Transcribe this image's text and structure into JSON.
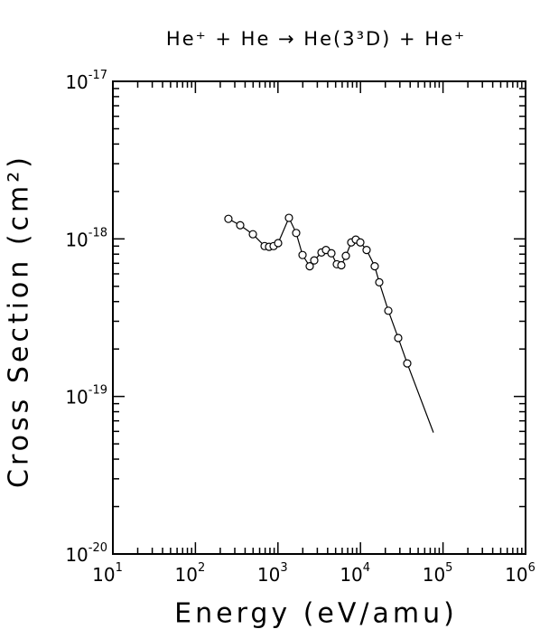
{
  "chart_data": {
    "type": "line",
    "title": "He⁺ + He → He(3³D) + He⁺",
    "xlabel": "Energy (eV/amu)",
    "ylabel": "Cross Section (cm²)",
    "xscale": "log",
    "yscale": "log",
    "xlim": [
      10,
      1000000
    ],
    "ylim": [
      1e-20,
      1e-17
    ],
    "xticks": [
      {
        "value": 10,
        "label": "10",
        "exponent": "1"
      },
      {
        "value": 100,
        "label": "10",
        "exponent": "2"
      },
      {
        "value": 1000,
        "label": "10",
        "exponent": "3"
      },
      {
        "value": 10000,
        "label": "10",
        "exponent": "4"
      },
      {
        "value": 100000,
        "label": "10",
        "exponent": "5"
      },
      {
        "value": 1000000,
        "label": "10",
        "exponent": "6"
      }
    ],
    "yticks": [
      {
        "value": 1e-20,
        "label": "10",
        "exponent": "-20"
      },
      {
        "value": 1e-19,
        "label": "10",
        "exponent": "-19"
      },
      {
        "value": 1e-18,
        "label": "10",
        "exponent": "-18"
      },
      {
        "value": 1e-17,
        "label": "10",
        "exponent": "-17"
      }
    ],
    "color": "#000000",
    "points": {
      "x": [
        251,
        349,
        497,
        689,
        781,
        886,
        1005,
        1359,
        1663,
        1985,
        2427,
        2753,
        3368,
        3818,
        4443,
        5168,
        5861,
        6650,
        7727,
        8770,
        9955,
        11860,
        14880,
        16890,
        21740,
        28660,
        36860
      ],
      "values": [
        1.34e-18,
        1.22e-18,
        1.07e-18,
        9e-19,
        8.9e-19,
        9e-19,
        9.4e-19,
        1.36e-18,
        1.09e-18,
        7.9e-19,
        6.7e-19,
        7.3e-19,
        8.2e-19,
        8.5e-19,
        8.1e-19,
        6.9e-19,
        6.8e-19,
        7.8e-19,
        9.5e-19,
        9.9e-19,
        9.5e-19,
        8.5e-19,
        6.7e-19,
        5.3e-19,
        3.5e-19,
        2.35e-19,
        1.62e-19
      ]
    },
    "line": {
      "x": [
        251,
        349,
        497,
        689,
        781,
        886,
        1005,
        1359,
        1663,
        1985,
        2427,
        2753,
        3368,
        3818,
        4443,
        5168,
        5861,
        6650,
        7727,
        8770,
        9955,
        11860,
        14880,
        16890,
        21740,
        28660,
        36860,
        76500
      ],
      "values": [
        1.34e-18,
        1.22e-18,
        1.07e-18,
        9e-19,
        8.9e-19,
        9e-19,
        9.4e-19,
        1.36e-18,
        1.09e-18,
        7.9e-19,
        6.7e-19,
        7.3e-19,
        8.2e-19,
        8.5e-19,
        8.1e-19,
        6.9e-19,
        6.8e-19,
        7.8e-19,
        9.5e-19,
        9.9e-19,
        9.5e-19,
        8.5e-19,
        6.7e-19,
        5.3e-19,
        3.5e-19,
        2.35e-19,
        1.62e-19,
        5.9e-20
      ]
    }
  }
}
